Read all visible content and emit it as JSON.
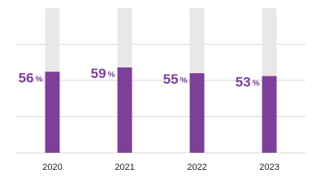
{
  "chart_data": {
    "type": "bar",
    "categories": [
      "2020",
      "2021",
      "2022",
      "2023"
    ],
    "values": [
      56,
      59,
      55,
      53
    ],
    "value_labels": [
      "56%",
      "59%",
      "55%",
      "53%"
    ],
    "color": "#7d3f98",
    "track_color": "#e8e8e8",
    "ylim": [
      0,
      100
    ],
    "yticks": [
      0,
      25,
      50,
      75
    ],
    "grid": true
  }
}
